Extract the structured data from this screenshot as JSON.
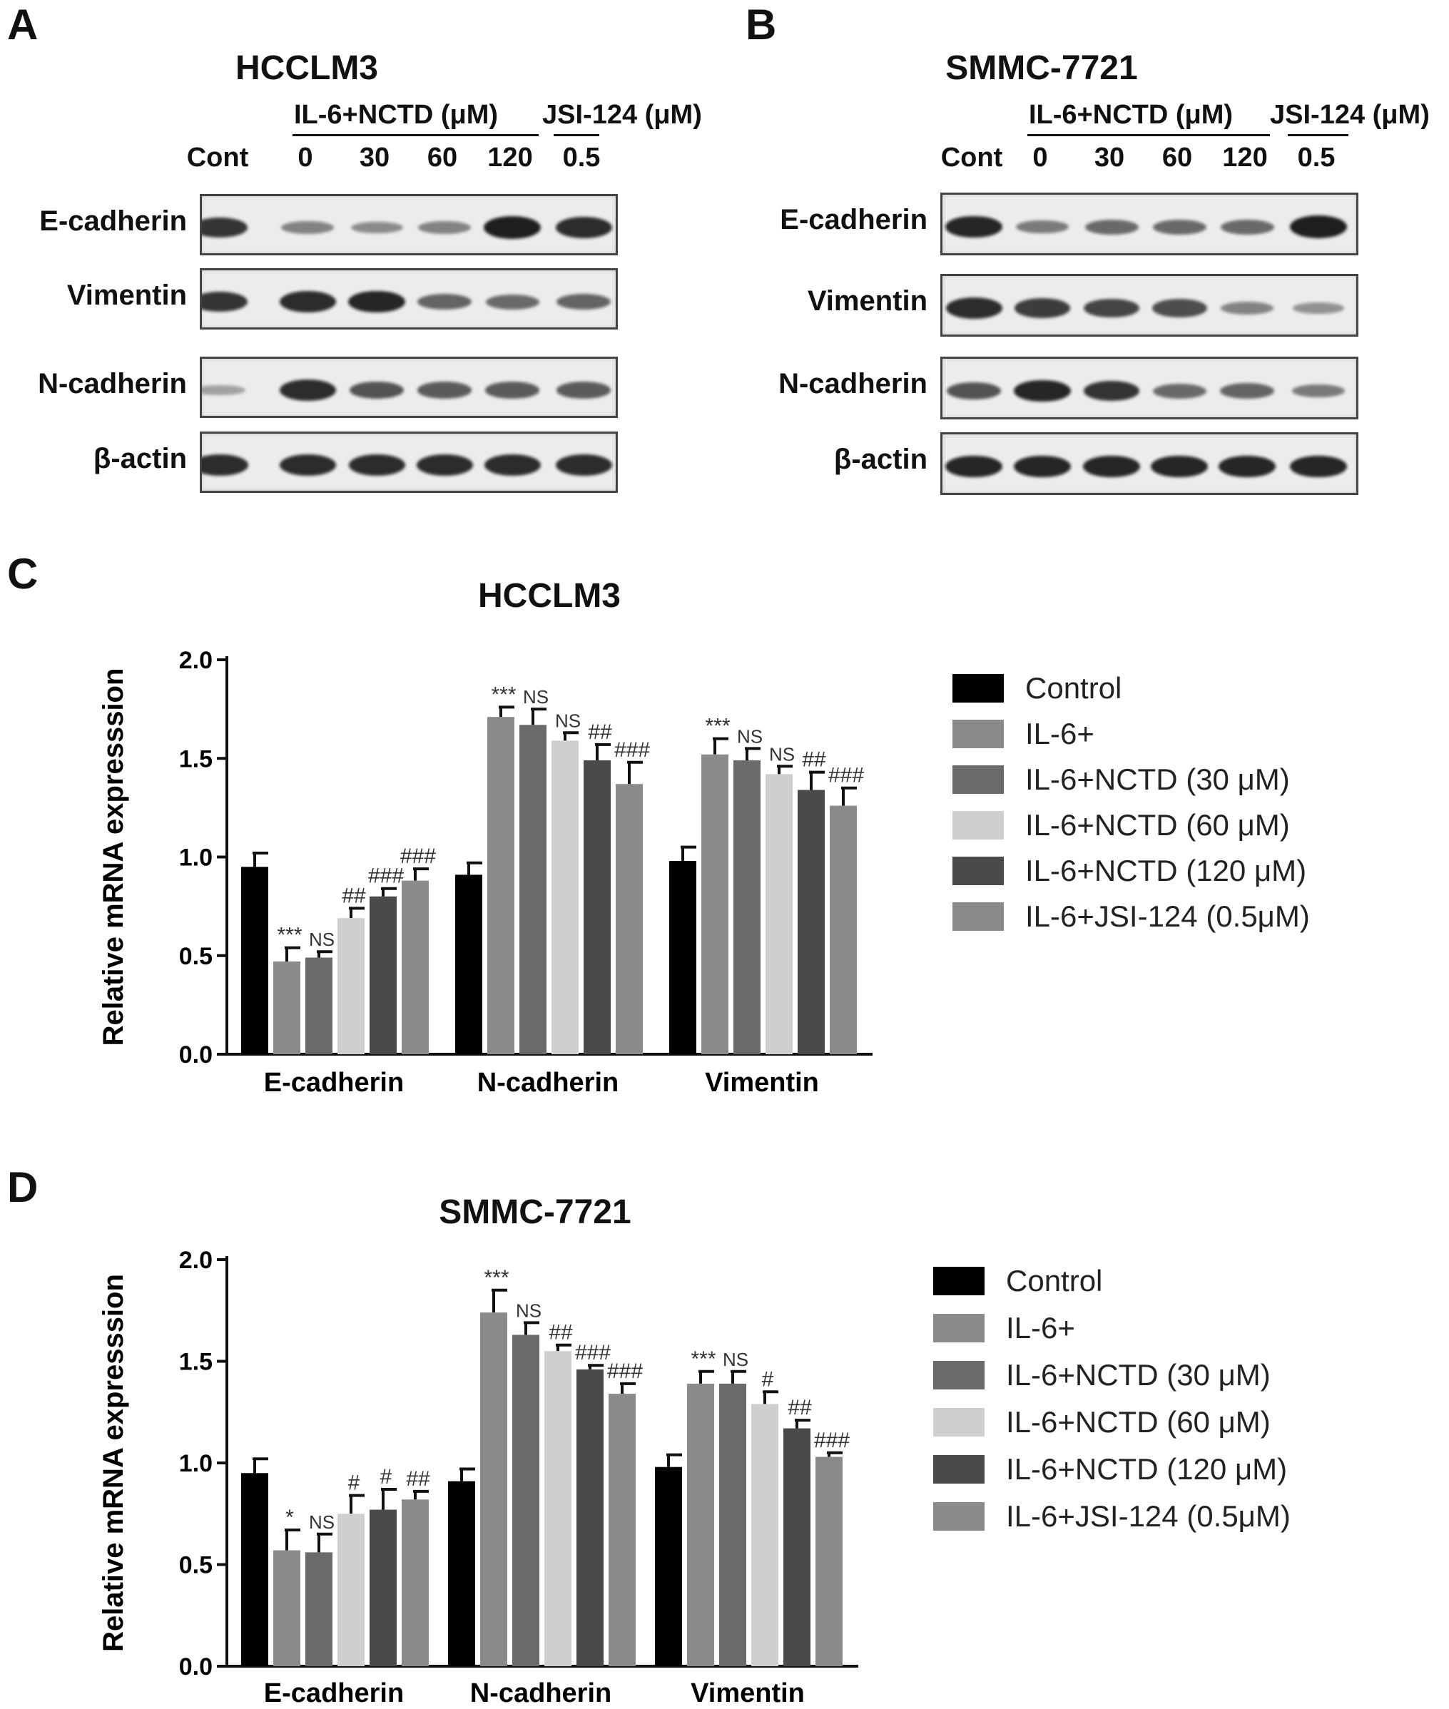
{
  "panels": {
    "A": "A",
    "B": "B",
    "C": "C",
    "D": "D"
  },
  "blots": [
    {
      "title": "HCCLM3",
      "group_nctd": "IL-6+NCTD (μM)",
      "group_jsi": "JSI-124 (μM)",
      "lanes": [
        "Cont",
        "0",
        "30",
        "60",
        "120",
        "0.5"
      ],
      "rows": [
        {
          "label": "E-cadherin",
          "intensities": [
            0.85,
            0.35,
            0.3,
            0.35,
            1.0,
            0.9
          ]
        },
        {
          "label": "Vimentin",
          "intensities": [
            0.85,
            0.9,
            0.95,
            0.55,
            0.5,
            0.55
          ]
        },
        {
          "label": "N-cadherin",
          "intensities": [
            0.15,
            0.9,
            0.65,
            0.6,
            0.6,
            0.6
          ]
        },
        {
          "label": "β-actin",
          "intensities": [
            0.9,
            0.9,
            0.9,
            0.9,
            0.9,
            0.9
          ]
        }
      ]
    },
    {
      "title": "SMMC-7721",
      "group_nctd": "IL-6+NCTD (μM)",
      "group_jsi": "JSI-124 (μM)",
      "lanes": [
        "Cont",
        "0",
        "30",
        "60",
        "120",
        "0.5"
      ],
      "rows": [
        {
          "label": "E-cadherin",
          "intensities": [
            0.95,
            0.4,
            0.5,
            0.5,
            0.5,
            1.0
          ]
        },
        {
          "label": "Vimentin",
          "intensities": [
            0.9,
            0.8,
            0.75,
            0.7,
            0.35,
            0.25
          ]
        },
        {
          "label": "N-cadherin",
          "intensities": [
            0.65,
            0.95,
            0.85,
            0.5,
            0.55,
            0.4
          ]
        },
        {
          "label": "β-actin",
          "intensities": [
            0.95,
            0.95,
            0.95,
            0.95,
            0.95,
            0.95
          ]
        }
      ]
    }
  ],
  "chart_data": [
    {
      "type": "bar",
      "title": "HCCLM3",
      "ylabel": "Relative mRNA expresssion",
      "ylim": [
        0,
        2.0
      ],
      "yticks": [
        "0.0",
        "0.5",
        "1.0",
        "1.5",
        "2.0"
      ],
      "categories": [
        "E-cadherin",
        "N-cadherin",
        "Vimentin"
      ],
      "legend_position": "right",
      "series": [
        {
          "name": "Control",
          "color": "#000000",
          "values": [
            0.95,
            0.91,
            0.98
          ],
          "errors": [
            0.07,
            0.06,
            0.07
          ],
          "annotations": [
            "",
            "",
            ""
          ]
        },
        {
          "name": "IL-6+",
          "color": "#8a8a8a",
          "values": [
            0.47,
            1.71,
            1.52
          ],
          "errors": [
            0.07,
            0.05,
            0.08
          ],
          "annotations": [
            "***",
            "***",
            "***"
          ]
        },
        {
          "name": "IL-6+NCTD (30 μM)",
          "color": "#6a6a6a",
          "values": [
            0.49,
            1.67,
            1.49
          ],
          "errors": [
            0.03,
            0.08,
            0.06
          ],
          "annotations": [
            "NS",
            "NS",
            "NS"
          ]
        },
        {
          "name": "IL-6+NCTD (60 μM)",
          "color": "#cfcfcf",
          "values": [
            0.69,
            1.59,
            1.42
          ],
          "errors": [
            0.05,
            0.04,
            0.04
          ],
          "annotations": [
            "##",
            "NS",
            "NS"
          ]
        },
        {
          "name": "IL-6+NCTD (120 μM)",
          "color": "#4a4a4a",
          "values": [
            0.8,
            1.49,
            1.34
          ],
          "errors": [
            0.04,
            0.08,
            0.09
          ],
          "annotations": [
            "###",
            "##",
            "##"
          ]
        },
        {
          "name": "IL-6+JSI-124 (0.5μM)",
          "color": "#8a8a8a",
          "values": [
            0.88,
            1.37,
            1.26
          ],
          "errors": [
            0.06,
            0.11,
            0.09
          ],
          "annotations": [
            "###",
            "###",
            "###"
          ]
        }
      ]
    },
    {
      "type": "bar",
      "title": "SMMC-7721",
      "ylabel": "Relative mRNA expresssion",
      "ylim": [
        0,
        2.0
      ],
      "yticks": [
        "0.0",
        "0.5",
        "1.0",
        "1.5",
        "2.0"
      ],
      "categories": [
        "E-cadherin",
        "N-cadherin",
        "Vimentin"
      ],
      "legend_position": "right",
      "series": [
        {
          "name": "Control",
          "color": "#000000",
          "values": [
            0.95,
            0.91,
            0.98
          ],
          "errors": [
            0.07,
            0.06,
            0.06
          ],
          "annotations": [
            "",
            "",
            ""
          ]
        },
        {
          "name": "IL-6+",
          "color": "#8a8a8a",
          "values": [
            0.57,
            1.74,
            1.39
          ],
          "errors": [
            0.1,
            0.11,
            0.06
          ],
          "annotations": [
            "*",
            "***",
            "***"
          ]
        },
        {
          "name": "IL-6+NCTD (30 μM)",
          "color": "#6a6a6a",
          "values": [
            0.56,
            1.63,
            1.39
          ],
          "errors": [
            0.09,
            0.06,
            0.06
          ],
          "annotations": [
            "NS",
            "NS",
            "NS"
          ]
        },
        {
          "name": "IL-6+NCTD (60 μM)",
          "color": "#cfcfcf",
          "values": [
            0.75,
            1.55,
            1.29
          ],
          "errors": [
            0.09,
            0.03,
            0.06
          ],
          "annotations": [
            "#",
            "##",
            "#"
          ]
        },
        {
          "name": "IL-6+NCTD (120 μM)",
          "color": "#4a4a4a",
          "values": [
            0.77,
            1.46,
            1.17
          ],
          "errors": [
            0.1,
            0.02,
            0.04
          ],
          "annotations": [
            "#",
            "###",
            "##"
          ]
        },
        {
          "name": "IL-6+JSI-124 (0.5μM)",
          "color": "#8a8a8a",
          "values": [
            0.82,
            1.34,
            1.03
          ],
          "errors": [
            0.04,
            0.05,
            0.02
          ],
          "annotations": [
            "##",
            "###",
            "###"
          ]
        }
      ]
    }
  ]
}
